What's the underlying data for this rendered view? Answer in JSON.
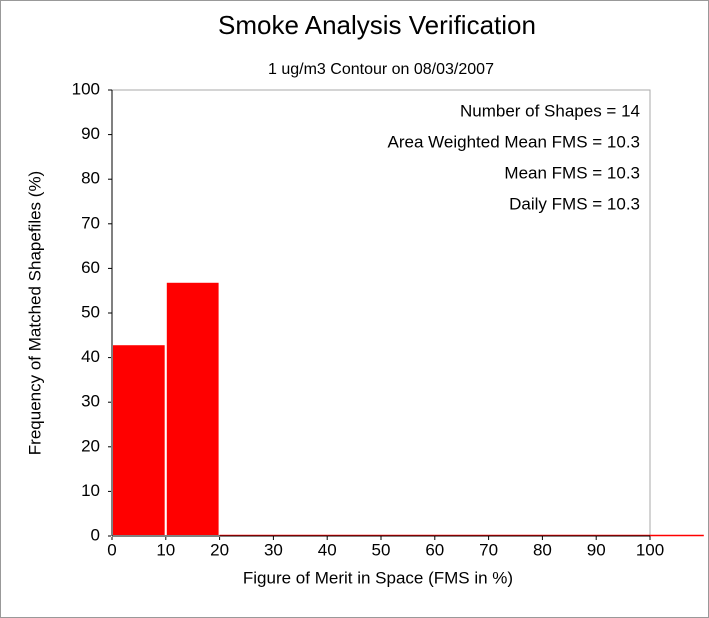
{
  "chart_data": {
    "type": "histogram",
    "title": "Smoke Analysis Verification",
    "subtitle": "1 ug/m3 Contour on 08/03/2007",
    "x_label": "Figure of Merit in Space (FMS in %)",
    "y_label": "Frequency of Matched Shapefiles (%)",
    "annotations": [
      "Number of Shapes = 14",
      "Area Weighted Mean FMS = 10.3",
      "Mean FMS = 10.3",
      "Daily FMS = 10.3"
    ],
    "bins": [
      0,
      10,
      20,
      30,
      40,
      50,
      60,
      70,
      80,
      90,
      100,
      110
    ],
    "values": [
      43,
      57,
      0,
      0,
      0,
      0,
      0,
      0,
      0,
      0,
      0
    ],
    "color": "#ff0000",
    "xlim": [
      0,
      100
    ],
    "xticks": [
      0,
      10,
      20,
      30,
      40,
      50,
      60,
      70,
      80,
      90,
      100
    ],
    "ylim": [
      0,
      100
    ],
    "yticks": [
      0,
      10,
      20,
      30,
      40,
      50,
      60,
      70,
      80,
      90,
      100
    ],
    "grid": false
  }
}
